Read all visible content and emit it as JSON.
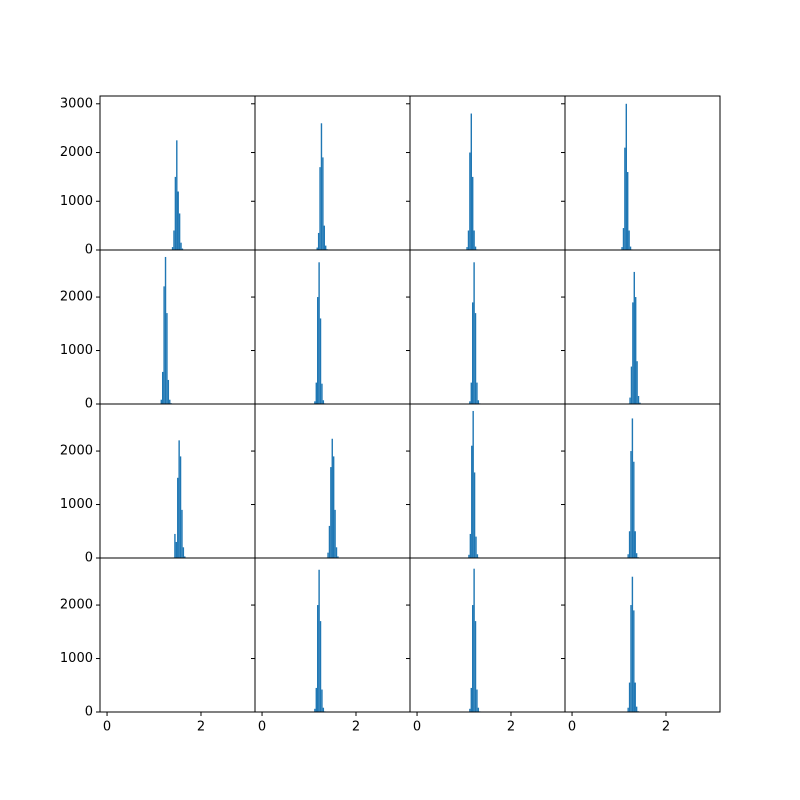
{
  "chart_data": [
    {
      "type": "histogram",
      "color": "#1f77b4",
      "bins": [
        1.35,
        1.38,
        1.41,
        1.44,
        1.47,
        1.5,
        1.53,
        1.56,
        1.59,
        1.62,
        1.65
      ],
      "values": [
        10,
        60,
        400,
        1500,
        2250,
        1200,
        750,
        150,
        30,
        5
      ],
      "xlim": [
        -0.15,
        3.15
      ],
      "ylim": [
        0,
        3160
      ],
      "yticks": [
        0,
        1000,
        2000,
        3000
      ]
    },
    {
      "type": "histogram",
      "color": "#1f77b4",
      "bins": [
        1.13,
        1.16,
        1.19,
        1.22,
        1.25,
        1.28,
        1.31,
        1.34,
        1.37,
        1.4,
        1.43
      ],
      "values": [
        5,
        50,
        350,
        1700,
        2600,
        1900,
        500,
        90,
        15,
        3
      ],
      "xlim": [
        -0.15,
        3.15
      ],
      "ylim": [
        0,
        3160
      ],
      "yticks": [
        0,
        1000,
        2000,
        3000
      ]
    },
    {
      "type": "histogram",
      "color": "#1f77b4",
      "bins": [
        1.02,
        1.05,
        1.08,
        1.11,
        1.14,
        1.17,
        1.2,
        1.23,
        1.26,
        1.29,
        1.32
      ],
      "values": [
        5,
        60,
        400,
        2000,
        2800,
        1500,
        400,
        70,
        12,
        3
      ],
      "xlim": [
        -0.15,
        3.15
      ],
      "ylim": [
        0,
        3160
      ],
      "yticks": [
        0,
        1000,
        2000,
        3000
      ]
    },
    {
      "type": "histogram",
      "color": "#1f77b4",
      "bins": [
        1.02,
        1.05,
        1.08,
        1.11,
        1.14,
        1.17,
        1.2,
        1.23,
        1.26,
        1.29,
        1.32
      ],
      "values": [
        5,
        60,
        450,
        2100,
        3000,
        1600,
        400,
        70,
        12,
        3
      ],
      "xlim": [
        -0.15,
        3.15
      ],
      "ylim": [
        0,
        3160
      ],
      "yticks": [
        0,
        1000,
        2000,
        3000
      ]
    },
    {
      "type": "histogram",
      "color": "#1f77b4",
      "bins": [
        1.11,
        1.14,
        1.17,
        1.2,
        1.23,
        1.26,
        1.29,
        1.32,
        1.35,
        1.38,
        1.41
      ],
      "values": [
        8,
        80,
        600,
        2200,
        2750,
        1700,
        450,
        80,
        15,
        4
      ],
      "xlim": [
        -0.15,
        3.15
      ],
      "ylim": [
        0,
        2880
      ],
      "yticks": [
        0,
        1000,
        2000
      ]
    },
    {
      "type": "histogram",
      "color": "#1f77b4",
      "bins": [
        1.08,
        1.11,
        1.14,
        1.17,
        1.2,
        1.23,
        1.26,
        1.29,
        1.32,
        1.35,
        1.38
      ],
      "values": [
        5,
        50,
        400,
        2000,
        2650,
        1600,
        380,
        70,
        12,
        3
      ],
      "xlim": [
        -0.15,
        3.15
      ],
      "ylim": [
        0,
        2880
      ],
      "yticks": [
        0,
        1000,
        2000
      ]
    },
    {
      "type": "histogram",
      "color": "#1f77b4",
      "bins": [
        1.08,
        1.11,
        1.14,
        1.17,
        1.2,
        1.23,
        1.26,
        1.29,
        1.32,
        1.35,
        1.38
      ],
      "values": [
        5,
        50,
        400,
        1900,
        2650,
        1700,
        400,
        70,
        12,
        3
      ],
      "xlim": [
        -0.15,
        3.15
      ],
      "ylim": [
        0,
        2880
      ],
      "yticks": [
        0,
        1000,
        2000
      ]
    },
    {
      "type": "histogram",
      "color": "#1f77b4",
      "bins": [
        1.19,
        1.22,
        1.25,
        1.28,
        1.31,
        1.34,
        1.37,
        1.4,
        1.43,
        1.46,
        1.49
      ],
      "values": [
        10,
        120,
        700,
        1900,
        2470,
        2000,
        800,
        150,
        25,
        5
      ],
      "xlim": [
        -0.15,
        3.15
      ],
      "ylim": [
        0,
        2880
      ],
      "yticks": [
        0,
        1000,
        2000
      ]
    },
    {
      "type": "histogram",
      "color": "#1f77b4",
      "bins": [
        1.4,
        1.43,
        1.46,
        1.49,
        1.52,
        1.55,
        1.58,
        1.61,
        1.64,
        1.67,
        1.7
      ],
      "values": [
        10,
        450,
        300,
        1500,
        2200,
        1900,
        900,
        200,
        30,
        5
      ],
      "xlim": [
        -0.15,
        3.15
      ],
      "ylim": [
        0,
        2880
      ],
      "yticks": [
        0,
        1000,
        2000
      ]
    },
    {
      "type": "histogram",
      "color": "#1f77b4",
      "bins": [
        1.36,
        1.39,
        1.42,
        1.45,
        1.48,
        1.51,
        1.54,
        1.57,
        1.6,
        1.63,
        1.66
      ],
      "values": [
        10,
        100,
        600,
        1700,
        2230,
        1900,
        900,
        200,
        30,
        5
      ],
      "xlim": [
        -0.15,
        3.15
      ],
      "ylim": [
        0,
        2880
      ],
      "yticks": [
        0,
        1000,
        2000
      ]
    },
    {
      "type": "histogram",
      "color": "#1f77b4",
      "bins": [
        1.06,
        1.09,
        1.12,
        1.15,
        1.18,
        1.21,
        1.24,
        1.27,
        1.3,
        1.33,
        1.36
      ],
      "values": [
        5,
        60,
        450,
        2100,
        2750,
        1600,
        400,
        70,
        12,
        3
      ],
      "xlim": [
        -0.15,
        3.15
      ],
      "ylim": [
        0,
        2880
      ],
      "yticks": [
        0,
        1000,
        2000
      ]
    },
    {
      "type": "histogram",
      "color": "#1f77b4",
      "bins": [
        1.15,
        1.18,
        1.21,
        1.24,
        1.27,
        1.3,
        1.33,
        1.36,
        1.39,
        1.42,
        1.45
      ],
      "values": [
        5,
        70,
        500,
        2000,
        2610,
        1800,
        500,
        90,
        15,
        3
      ],
      "xlim": [
        -0.15,
        3.15
      ],
      "ylim": [
        0,
        2880
      ],
      "yticks": [
        0,
        1000,
        2000
      ]
    },
    {
      "type": "histogram",
      "xlim": [
        -0.15,
        3.15
      ],
      "ylim": [
        0,
        2880
      ],
      "yticks": [
        0,
        1000,
        2000
      ],
      "xticks": [
        0,
        2
      ]
    },
    {
      "type": "histogram",
      "color": "#1f77b4",
      "bins": [
        1.08,
        1.11,
        1.14,
        1.17,
        1.2,
        1.23,
        1.26,
        1.29,
        1.32,
        1.35,
        1.38
      ],
      "values": [
        5,
        60,
        450,
        2000,
        2660,
        1700,
        420,
        80,
        12,
        3
      ],
      "xlim": [
        -0.15,
        3.15
      ],
      "ylim": [
        0,
        2880
      ],
      "yticks": [
        0,
        1000,
        2000
      ],
      "xticks": [
        0,
        2
      ]
    },
    {
      "type": "histogram",
      "color": "#1f77b4",
      "bins": [
        1.08,
        1.11,
        1.14,
        1.17,
        1.2,
        1.23,
        1.26,
        1.29,
        1.32,
        1.35,
        1.38
      ],
      "values": [
        5,
        60,
        450,
        2000,
        2680,
        1700,
        420,
        80,
        12,
        3
      ],
      "xlim": [
        -0.15,
        3.15
      ],
      "ylim": [
        0,
        2880
      ],
      "yticks": [
        0,
        1000,
        2000
      ],
      "xticks": [
        0,
        2
      ]
    },
    {
      "type": "histogram",
      "color": "#1f77b4",
      "bins": [
        1.15,
        1.18,
        1.21,
        1.24,
        1.27,
        1.3,
        1.33,
        1.36,
        1.39,
        1.42,
        1.45
      ],
      "values": [
        5,
        80,
        550,
        2000,
        2530,
        1900,
        550,
        100,
        15,
        3
      ],
      "xlim": [
        -0.15,
        3.15
      ],
      "ylim": [
        0,
        2880
      ],
      "yticks": [
        0,
        1000,
        2000
      ],
      "xticks": [
        0,
        2
      ]
    }
  ]
}
